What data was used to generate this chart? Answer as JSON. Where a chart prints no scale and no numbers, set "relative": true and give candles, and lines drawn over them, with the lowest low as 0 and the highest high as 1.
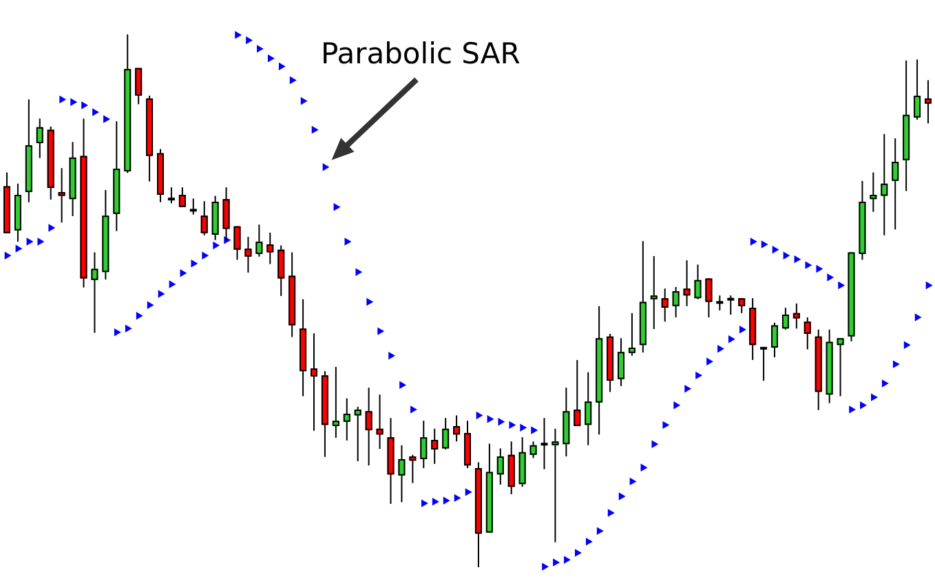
{
  "chart_data": {
    "type": "candlestick",
    "relative": true,
    "categories": [
      null,
      null,
      null,
      null,
      null,
      null,
      null,
      null,
      null,
      null,
      null,
      null,
      null,
      null,
      null,
      null,
      null,
      null,
      null,
      null,
      null,
      null,
      null,
      null,
      null,
      null,
      null,
      null,
      null,
      null,
      null,
      null,
      null,
      null,
      null,
      null,
      null,
      null,
      null,
      null,
      null,
      null,
      null,
      null,
      null,
      null,
      null,
      null,
      null,
      null,
      null,
      null,
      null,
      null,
      null,
      null,
      null,
      null,
      null,
      null,
      null,
      null,
      null,
      null,
      null,
      null,
      null,
      null,
      null,
      null,
      null,
      null,
      null,
      null,
      null,
      null,
      null,
      null,
      null,
      null,
      null,
      null,
      null,
      null,
      null
    ],
    "ohlc": [
      [
        0.715,
        0.741,
        0.627,
        0.627
      ],
      [
        0.632,
        0.72,
        0.611,
        0.699
      ],
      [
        0.704,
        0.878,
        0.685,
        0.792
      ],
      [
        0.796,
        0.842,
        0.768,
        0.826
      ],
      [
        0.821,
        0.827,
        0.69,
        0.712
      ],
      [
        0.704,
        0.749,
        0.647,
        0.697
      ],
      [
        0.691,
        0.798,
        0.659,
        0.769
      ],
      [
        0.772,
        0.842,
        0.525,
        0.542
      ],
      [
        0.539,
        0.591,
        0.44,
        0.56
      ],
      [
        0.554,
        0.708,
        0.54,
        0.66
      ],
      [
        0.663,
        0.837,
        0.631,
        0.748
      ],
      [
        0.743,
        1,
        0.74,
        0.935
      ],
      [
        0.937,
        0.937,
        0.869,
        0.885
      ],
      [
        0.88,
        0.885,
        0.724,
        0.772
      ],
      [
        0.777,
        0.785,
        0.685,
        0.699
      ],
      [
        0.691,
        0.713,
        0.683,
        0.691
      ],
      [
        0.699,
        0.713,
        0.676,
        0.676
      ],
      [
        0.67,
        0.692,
        0.662,
        0.67
      ],
      [
        0.66,
        0.687,
        0.623,
        0.627
      ],
      [
        0.624,
        0.697,
        0.614,
        0.686
      ],
      [
        0.691,
        0.713,
        0.614,
        0.635
      ],
      [
        0.64,
        0.64,
        0.577,
        0.596
      ],
      [
        0.598,
        0.62,
        0.553,
        0.583
      ],
      [
        0.588,
        0.643,
        0.583,
        0.611
      ],
      [
        0.606,
        0.628,
        0.569,
        0.591
      ],
      [
        0.596,
        0.604,
        0.509,
        0.542
      ],
      [
        0.547,
        0.591,
        0.432,
        0.454
      ],
      [
        0.448,
        0.503,
        0.321,
        0.368
      ],
      [
        0.373,
        0.439,
        0.256,
        0.358
      ],
      [
        0.36,
        0.368,
        0.207,
        0.267
      ],
      [
        0.265,
        0.376,
        0.243,
        0.275
      ],
      [
        0.273,
        0.317,
        0.238,
        0.288
      ],
      [
        0.285,
        0.301,
        0.199,
        0.296
      ],
      [
        0.293,
        0.337,
        0.191,
        0.257
      ],
      [
        0.26,
        0.324,
        0.222,
        0.249
      ],
      [
        0.244,
        0.28,
        0.119,
        0.174
      ],
      [
        0.172,
        0.229,
        0.122,
        0.203
      ],
      [
        0.208,
        0.211,
        0.158,
        0.2
      ],
      [
        0.203,
        0.275,
        0.186,
        0.244
      ],
      [
        0.239,
        0.26,
        0.194,
        0.221
      ],
      [
        0.223,
        0.28,
        0.221,
        0.26
      ],
      [
        0.265,
        0.285,
        0.236,
        0.249
      ],
      [
        0.252,
        0.275,
        0.186,
        0.191
      ],
      [
        0.186,
        0.197,
        0,
        0.063
      ],
      [
        0.065,
        0.232,
        0.065,
        0.179
      ],
      [
        0.174,
        0.223,
        0.155,
        0.208
      ],
      [
        0.211,
        0.236,
        0.137,
        0.151
      ],
      [
        0.156,
        0.244,
        0.151,
        0.216
      ],
      [
        0.211,
        0.236,
        0.205,
        0.229
      ],
      [
        0.231,
        0.28,
        0.184,
        0.231
      ],
      [
        0.229,
        0.26,
        0.047,
        0.236
      ],
      [
        0.231,
        0.337,
        0.208,
        0.293
      ],
      [
        0.296,
        0.389,
        0.265,
        0.265
      ],
      [
        0.267,
        0.366,
        0.229,
        0.311
      ],
      [
        0.309,
        0.49,
        0.249,
        0.43
      ],
      [
        0.433,
        0.438,
        0.329,
        0.35
      ],
      [
        0.353,
        0.43,
        0.34,
        0.404
      ],
      [
        0.402,
        0.477,
        0.397,
        0.412
      ],
      [
        0.417,
        0.612,
        0.403,
        0.498
      ],
      [
        0.503,
        0.584,
        0.447,
        0.51
      ],
      [
        0.505,
        0.523,
        0.461,
        0.487
      ],
      [
        0.49,
        0.526,
        0.469,
        0.518
      ],
      [
        0.523,
        0.576,
        0.49,
        0.51
      ],
      [
        0.505,
        0.568,
        0.503,
        0.539
      ],
      [
        0.542,
        0.542,
        0.469,
        0.498
      ],
      [
        0.497,
        0.51,
        0.482,
        0.497
      ],
      [
        0.503,
        0.51,
        0.474,
        0.503
      ],
      [
        0.505,
        0.505,
        0.477,
        0.49
      ],
      [
        0.487,
        0.505,
        0.389,
        0.417
      ],
      [
        0.411,
        0.411,
        0.35,
        0.411
      ],
      [
        0.412,
        0.459,
        0.394,
        0.454
      ],
      [
        0.448,
        0.487,
        0.446,
        0.474
      ],
      [
        0.477,
        0.495,
        0.448,
        0.467
      ],
      [
        0.461,
        0.469,
        0.409,
        0.438
      ],
      [
        0.433,
        0.446,
        0.295,
        0.329
      ],
      [
        0.324,
        0.446,
        0.308,
        0.423
      ],
      [
        0.417,
        0.43,
        0.321,
        0.43
      ],
      [
        0.433,
        0.591,
        0.424,
        0.591
      ],
      [
        0.588,
        0.725,
        0.577,
        0.686
      ],
      [
        0.691,
        0.741,
        0.667,
        0.699
      ],
      [
        0.697,
        0.813,
        0.623,
        0.72
      ],
      [
        0.725,
        0.805,
        0.634,
        0.761
      ],
      [
        0.764,
        0.951,
        0.706,
        0.849
      ],
      [
        0.844,
        0.953,
        0.84,
        0.885
      ],
      [
        0.88,
        0.914,
        0.833,
        0.87
      ]
    ],
    "colors": [
      "#ff0000",
      "#32cd32",
      "#32cd32",
      "#32cd32",
      "#ff0000",
      "#ff0000",
      "#32cd32",
      "#ff0000",
      "#32cd32",
      "#32cd32",
      "#32cd32",
      "#32cd32",
      "#ff0000",
      "#ff0000",
      "#ff0000",
      "#000000",
      "#ff0000",
      "#000000",
      "#ff0000",
      "#32cd32",
      "#ff0000",
      "#ff0000",
      "#ff0000",
      "#32cd32",
      "#ff0000",
      "#ff0000",
      "#ff0000",
      "#ff0000",
      "#ff0000",
      "#ff0000",
      "#32cd32",
      "#32cd32",
      "#32cd32",
      "#ff0000",
      "#ff0000",
      "#ff0000",
      "#32cd32",
      "#ff0000",
      "#32cd32",
      "#ff0000",
      "#32cd32",
      "#ff0000",
      "#ff0000",
      "#ff0000",
      "#32cd32",
      "#32cd32",
      "#ff0000",
      "#32cd32",
      "#32cd32",
      "#000000",
      "#32cd32",
      "#32cd32",
      "#ff0000",
      "#32cd32",
      "#32cd32",
      "#ff0000",
      "#32cd32",
      "#32cd32",
      "#32cd32",
      "#32cd32",
      "#ff0000",
      "#32cd32",
      "#ff0000",
      "#32cd32",
      "#ff0000",
      "#000000",
      "#000000",
      "#ff0000",
      "#ff0000",
      "#000000",
      "#32cd32",
      "#32cd32",
      "#ff0000",
      "#ff0000",
      "#ff0000",
      "#32cd32",
      "#32cd32",
      "#32cd32",
      "#32cd32",
      "#32cd32",
      "#32cd32",
      "#32cd32",
      "#32cd32",
      "#32cd32",
      "#ff0000"
    ],
    "series": [
      {
        "type": "scatter",
        "color": "#0000ff",
        "marker": "triangle",
        "values": [
          0.585,
          0.598,
          0.611,
          0.611,
          0.637,
          0.878,
          0.873,
          0.867,
          0.854,
          0.841,
          0.441,
          0.448,
          0.472,
          0.492,
          0.513,
          0.531,
          0.552,
          0.57,
          0.585,
          0.604,
          0.614,
          0.999,
          0.989,
          0.973,
          0.955,
          0.94,
          0.914,
          0.875,
          0.821,
          0.751,
          0.676,
          0.611,
          0.554,
          0.498,
          0.443,
          0.397,
          0.342,
          0.296,
          0.12,
          0.123,
          0.125,
          0.13,
          0.141,
          0.285,
          0.278,
          0.273,
          0.267,
          0.262,
          0.257,
          0.001,
          0.009,
          0.014,
          0.027,
          0.048,
          0.068,
          0.102,
          0.133,
          0.161,
          0.187,
          0.231,
          0.267,
          0.304,
          0.335,
          0.36,
          0.386,
          0.41,
          0.428,
          0.446,
          0.611,
          0.606,
          0.596,
          0.585,
          0.578,
          0.567,
          0.56,
          0.544,
          0.529,
          0.296,
          0.304,
          0.319,
          0.345,
          0.381,
          0.417,
          0.469,
          0.529
        ]
      }
    ],
    "annotations": [
      "Parabolic SAR"
    ]
  }
}
